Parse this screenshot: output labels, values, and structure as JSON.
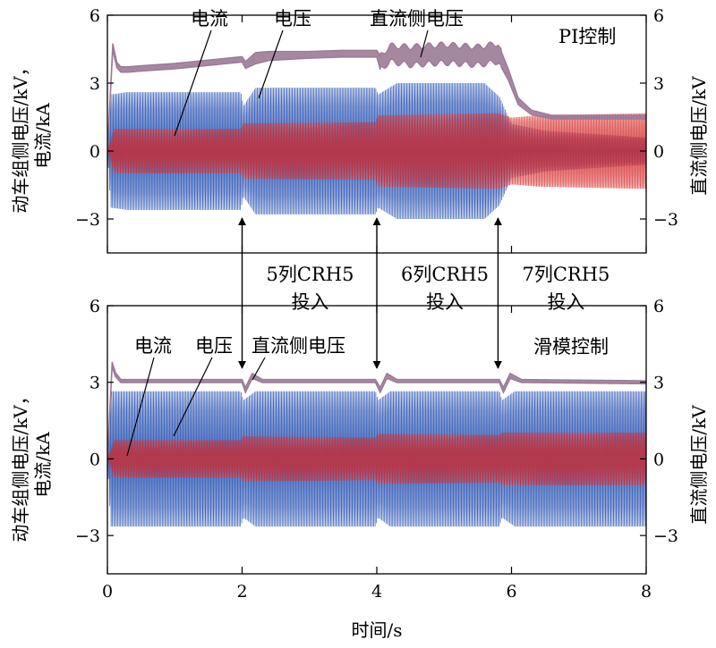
{
  "chart_data": [
    {
      "type": "line",
      "panel": "top",
      "control_label": "PI控制",
      "xlim": [
        0,
        8
      ],
      "ylim_left": [
        -4.5,
        6
      ],
      "ylim_right": [
        -4.5,
        6
      ],
      "yticks_left": [
        {
          "value": 6,
          "label": "6"
        },
        {
          "value": 3,
          "label": "3"
        },
        {
          "value": 0,
          "label": "0"
        },
        {
          "value": -3,
          "label": "−3"
        }
      ],
      "yticks_right": [
        {
          "value": 6,
          "label": "6"
        },
        {
          "value": 3,
          "label": "3"
        },
        {
          "value": 0,
          "label": "0"
        },
        {
          "value": -3,
          "label": "−3"
        }
      ],
      "ylabel_left": [
        "动车组侧电压/kV，",
        "电流/kA"
      ],
      "ylabel_right": "直流侧电压/kV",
      "series": [
        {
          "name": "电压",
          "color": "#3a5fb8",
          "kind": "oscillation",
          "x": [
            0,
            0.05,
            0.3,
            1.98,
            2.02,
            2.2,
            3.98,
            4.02,
            4.3,
            5.0,
            5.6,
            5.82,
            6.0,
            6.5,
            8
          ],
          "amplitude": [
            0,
            2.5,
            2.6,
            2.6,
            2.0,
            2.8,
            2.8,
            2.5,
            3.0,
            3.0,
            3.0,
            2.4,
            1.2,
            0.9,
            0.6
          ]
        },
        {
          "name": "电流",
          "color": "#d62a2a",
          "kind": "oscillation",
          "x": [
            0,
            0.1,
            1.98,
            2.02,
            3.98,
            4.02,
            5.82,
            6.0,
            6.4,
            8
          ],
          "amplitude": [
            0,
            1.0,
            1.0,
            1.25,
            1.3,
            1.6,
            1.7,
            1.5,
            1.6,
            1.7
          ]
        },
        {
          "name": "直流侧电压",
          "color": "#9c7a96",
          "kind": "line",
          "x": [
            0,
            0.08,
            0.14,
            0.2,
            0.3,
            0.5,
            1.0,
            1.5,
            2.0,
            2.05,
            2.2,
            2.4,
            3.0,
            3.5,
            4.0,
            4.05,
            4.2,
            4.5,
            5.0,
            5.5,
            5.8,
            5.95,
            6.1,
            6.3,
            6.6,
            8
          ],
          "y": [
            0,
            4.6,
            3.8,
            3.6,
            3.6,
            3.65,
            3.75,
            3.9,
            4.05,
            3.8,
            4.1,
            4.2,
            4.25,
            4.3,
            4.3,
            3.9,
            4.3,
            4.2,
            4.3,
            4.2,
            4.35,
            3.4,
            2.2,
            1.7,
            1.5,
            1.5
          ],
          "ripple_amplitude": [
            0,
            0.15,
            0.12,
            0.12,
            0.12,
            0.12,
            0.12,
            0.12,
            0.12,
            0.15,
            0.25,
            0.2,
            0.15,
            0.15,
            0.15,
            0.3,
            0.35,
            0.4,
            0.4,
            0.4,
            0.4,
            0.25,
            0.15,
            0.1,
            0.08,
            0.08
          ]
        }
      ],
      "annotations": [
        "电流",
        "电压",
        "直流侧电压"
      ]
    },
    {
      "type": "line",
      "panel": "bottom",
      "control_label": "滑模控制",
      "xlim": [
        0,
        8
      ],
      "ylim_left": [
        -4.5,
        6
      ],
      "ylim_right": [
        -4.5,
        6
      ],
      "yticks_left": [
        {
          "value": 6,
          "label": "6"
        },
        {
          "value": 3,
          "label": "3"
        },
        {
          "value": 0,
          "label": "0"
        },
        {
          "value": -3,
          "label": "−3"
        }
      ],
      "yticks_right": [
        {
          "value": 6,
          "label": "6"
        },
        {
          "value": 3,
          "label": "3"
        },
        {
          "value": 0,
          "label": "0"
        },
        {
          "value": -3,
          "label": "−3"
        }
      ],
      "xticks": [
        {
          "value": 0,
          "label": "0"
        },
        {
          "value": 2,
          "label": "2"
        },
        {
          "value": 4,
          "label": "4"
        },
        {
          "value": 6,
          "label": "6"
        },
        {
          "value": 8,
          "label": "8"
        }
      ],
      "xlabel": "时间/s",
      "ylabel_left": [
        "动车组侧电压/kV，",
        "电流/kA"
      ],
      "ylabel_right": "直流侧电压/kV",
      "series": [
        {
          "name": "电压",
          "color": "#3a5fb8",
          "kind": "oscillation",
          "x": [
            0,
            0.05,
            1.98,
            2.02,
            2.2,
            3.98,
            4.02,
            4.2,
            5.82,
            5.86,
            6.05,
            8
          ],
          "amplitude": [
            0,
            2.65,
            2.65,
            2.3,
            2.65,
            2.65,
            2.3,
            2.65,
            2.65,
            2.3,
            2.65,
            2.65
          ]
        },
        {
          "name": "电流",
          "color": "#d62a2a",
          "kind": "oscillation",
          "x": [
            0,
            0.1,
            1.98,
            2.02,
            3.98,
            4.02,
            5.82,
            5.86,
            8
          ],
          "amplitude": [
            0,
            0.75,
            0.75,
            0.9,
            0.85,
            1.0,
            0.95,
            1.05,
            1.05
          ]
        },
        {
          "name": "直流侧电压",
          "color": "#9c7a96",
          "kind": "line",
          "x": [
            0,
            0.07,
            0.12,
            0.2,
            0.4,
            2.0,
            2.05,
            2.15,
            2.3,
            3.98,
            4.05,
            4.15,
            4.3,
            5.82,
            5.88,
            5.98,
            6.15,
            8
          ],
          "y": [
            0,
            3.7,
            3.3,
            3.05,
            3.05,
            3.05,
            2.7,
            3.25,
            3.05,
            3.05,
            2.7,
            3.25,
            3.05,
            3.05,
            2.7,
            3.25,
            3.05,
            3.0
          ],
          "ripple_amplitude": [
            0,
            0.1,
            0.08,
            0.06,
            0.06,
            0.06,
            0.1,
            0.1,
            0.06,
            0.06,
            0.1,
            0.1,
            0.06,
            0.06,
            0.1,
            0.1,
            0.06,
            0.06
          ]
        }
      ],
      "annotations": [
        "电流",
        "电压",
        "直流侧电压"
      ]
    }
  ],
  "events": [
    {
      "time": 2.0,
      "line1": "5列CRH5",
      "line2": "投入"
    },
    {
      "time": 4.0,
      "line1": "6列CRH5",
      "line2": "投入"
    },
    {
      "time": 5.8,
      "line1": "7列CRH5",
      "line2": "投入"
    }
  ]
}
